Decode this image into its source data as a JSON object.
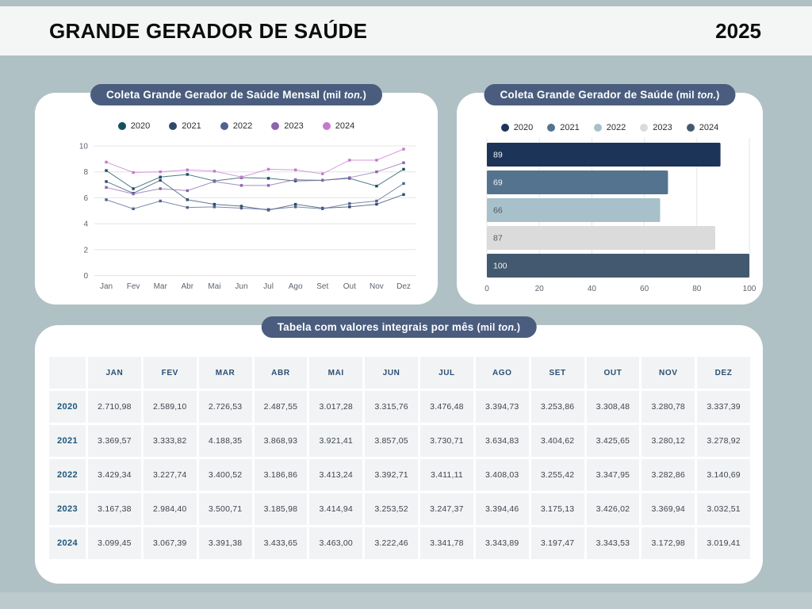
{
  "page": {
    "bg": "#b0c1c5",
    "title": "GRANDE GERADOR DE SAÚDE",
    "year": "2025"
  },
  "cards": {
    "line": {
      "title_main": "Coleta Grande Gerador de Saúde Mensal ",
      "unit_plain": "(mil ",
      "unit_italic": "ton.",
      "unit_close": ")"
    },
    "bar": {
      "title_main": "Coleta Grande Gerador de Saúde  ",
      "unit_plain": "(mil ",
      "unit_italic": "ton.",
      "unit_close": ")"
    },
    "table": {
      "title_main": "Tabela com valores integrais por mês ",
      "unit_plain": "(mil ",
      "unit_italic": "ton.",
      "unit_close": ")"
    }
  },
  "chart_data": [
    {
      "type": "line",
      "title": "Coleta Grande Gerador de Saúde Mensal (mil ton.)",
      "categories": [
        "Jan",
        "Fev",
        "Mar",
        "Abr",
        "Mai",
        "Jun",
        "Jul",
        "Ago",
        "Set",
        "Out",
        "Nov",
        "Dez"
      ],
      "series": [
        {
          "name": "2020",
          "color": "#15505f",
          "values": [
            8.1,
            6.7,
            7.6,
            7.8,
            7.3,
            7.55,
            7.5,
            7.3,
            7.35,
            7.5,
            6.9,
            8.2
          ]
        },
        {
          "name": "2021",
          "color": "#2e4a68",
          "values": [
            7.25,
            6.35,
            7.35,
            5.85,
            5.5,
            5.35,
            5.05,
            5.5,
            5.2,
            5.3,
            5.5,
            6.25
          ]
        },
        {
          "name": "2022",
          "color": "#50618f",
          "values": [
            5.85,
            5.15,
            5.75,
            5.25,
            5.3,
            5.2,
            5.1,
            5.3,
            5.15,
            5.55,
            5.75,
            7.1
          ]
        },
        {
          "name": "2023",
          "color": "#8a65ae",
          "values": [
            6.8,
            6.3,
            6.7,
            6.55,
            7.25,
            6.95,
            6.95,
            7.4,
            7.35,
            7.55,
            8.0,
            8.7
          ]
        },
        {
          "name": "2024",
          "color": "#c678cf",
          "values": [
            8.75,
            7.95,
            8.0,
            8.15,
            8.05,
            7.6,
            8.2,
            8.15,
            7.85,
            8.9,
            8.9,
            9.75
          ]
        }
      ],
      "ylim": [
        0,
        10
      ],
      "yticks": [
        0,
        2,
        4,
        6,
        8,
        10
      ],
      "grid": "horizontal",
      "legend_position": "top",
      "axis_text_color": "#5b6470",
      "grid_color": "#e4e4e4"
    },
    {
      "type": "bar",
      "orientation": "horizontal",
      "title": "Coleta Grande Gerador de Saúde (mil ton.)",
      "categories": [
        "2020",
        "2021",
        "2022",
        "2023",
        "2024"
      ],
      "values": [
        89,
        69,
        66,
        87,
        100
      ],
      "bar_colors": [
        "#1c3457",
        "#54738f",
        "#a7c0ca",
        "#dbdbdb",
        "#43596f"
      ],
      "value_labels": [
        "89",
        "69",
        "66",
        "87",
        "100"
      ],
      "value_label_colors": [
        "#f4f5f6",
        "#f4f5f6",
        "#55595e",
        "#55595e",
        "#f4f5f6"
      ],
      "xlim": [
        0,
        100
      ],
      "xticks": [
        0,
        20,
        40,
        60,
        80,
        100
      ],
      "grid": "vertical",
      "legend_position": "top",
      "axis_text_color": "#5b6470",
      "grid_color": "#e3e6e8"
    }
  ],
  "table": {
    "columns": [
      "JAN",
      "FEV",
      "MAR",
      "ABR",
      "MAI",
      "JUN",
      "JUL",
      "AGO",
      "SET",
      "OUT",
      "NOV",
      "DEZ"
    ],
    "rows": [
      {
        "year": "2020",
        "values": [
          "2.710,98",
          "2.589,10",
          "2.726,53",
          "2.487,55",
          "3.017,28",
          "3.315,76",
          "3.476,48",
          "3.394,73",
          "3.253,86",
          "3.308,48",
          "3.280,78",
          "3.337,39"
        ]
      },
      {
        "year": "2021",
        "values": [
          "3.369,57",
          "3.333,82",
          "4.188,35",
          "3.868,93",
          "3.921,41",
          "3.857,05",
          "3.730,71",
          "3.634,83",
          "3.404,62",
          "3.425,65",
          "3.280,12",
          "3.278,92"
        ]
      },
      {
        "year": "2022",
        "values": [
          "3.429,34",
          "3.227,74",
          "3.400,52",
          "3.186,86",
          "3.413,24",
          "3.392,71",
          "3.411,11",
          "3.408,03",
          "3.255,42",
          "3.347,95",
          "3.282,86",
          "3.140,69"
        ]
      },
      {
        "year": "2023",
        "values": [
          "3.167,38",
          "2.984,40",
          "3.500,71",
          "3.185,98",
          "3.414,94",
          "3.253,52",
          "3.247,37",
          "3.394,46",
          "3.175,13",
          "3.426,02",
          "3.369,94",
          "3.032,51"
        ]
      },
      {
        "year": "2024",
        "values": [
          "3.099,45",
          "3.067,39",
          "3.391,38",
          "3.433,65",
          "3.463,00",
          "3.222,46",
          "3.341,78",
          "3.343,89",
          "3.197,47",
          "3.343,53",
          "3.172,98",
          "3.019,41"
        ]
      }
    ]
  }
}
